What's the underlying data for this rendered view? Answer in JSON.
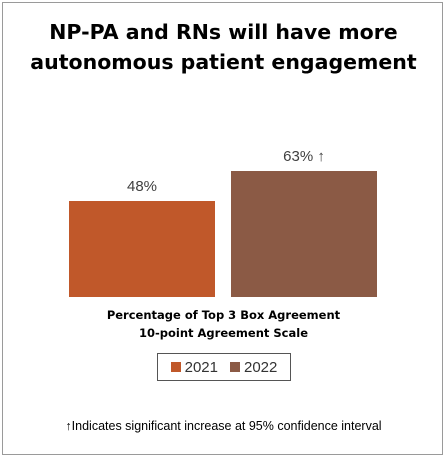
{
  "title_line1": "NP-PA and RNs will have more",
  "title_line2": "autonomous patient engagement",
  "chart_data": {
    "type": "bar",
    "categories": [
      "2021",
      "2022"
    ],
    "values": [
      48,
      63
    ],
    "data_labels": [
      "48%",
      "63% ↑"
    ],
    "colors": [
      "#c0582a",
      "#8b5a45"
    ],
    "ylim": [
      0,
      100
    ],
    "grid": false,
    "legend": [
      "2021",
      "2022"
    ],
    "legend_position": "bottom",
    "xlabel_line1": "Percentage of Top 3 Box Agreement",
    "xlabel_line2": "10-point Agreement Scale"
  },
  "footnote": "↑Indicates significant increase at 95% confidence interval"
}
